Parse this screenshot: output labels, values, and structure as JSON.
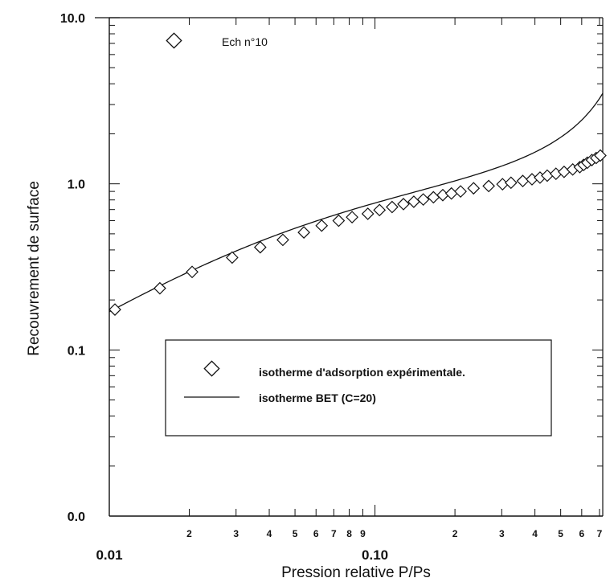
{
  "chart_data": {
    "type": "scatter",
    "xlabel": "Pression relative P/Ps",
    "ylabel": "Recouvrement de surface",
    "x_scale": "log",
    "y_scale": "log",
    "xlim": [
      0.01,
      0.72
    ],
    "ylim": [
      0.01,
      10
    ],
    "grid": false,
    "x_major_ticks": [
      {
        "value": 0.01,
        "label": "0.01"
      },
      {
        "value": 0.1,
        "label": "0.10"
      }
    ],
    "x_minor_ticks": [
      {
        "value": 0.02,
        "label": "2"
      },
      {
        "value": 0.03,
        "label": "3"
      },
      {
        "value": 0.04,
        "label": "4"
      },
      {
        "value": 0.05,
        "label": "5"
      },
      {
        "value": 0.06,
        "label": "6"
      },
      {
        "value": 0.07,
        "label": "7"
      },
      {
        "value": 0.08,
        "label": "8"
      },
      {
        "value": 0.09,
        "label": "9"
      },
      {
        "value": 0.2,
        "label": "2"
      },
      {
        "value": 0.3,
        "label": "3"
      },
      {
        "value": 0.4,
        "label": "4"
      },
      {
        "value": 0.5,
        "label": "5"
      },
      {
        "value": 0.6,
        "label": "6"
      },
      {
        "value": 0.7,
        "label": "7"
      }
    ],
    "y_ticks": [
      {
        "value": 10,
        "label": "10.0"
      },
      {
        "value": 1,
        "label": "1.0"
      },
      {
        "value": 0.1,
        "label": "0.1"
      },
      {
        "value": 0.01,
        "label": "0.0"
      }
    ],
    "annotation": "Ech n°10",
    "legend_position": "center",
    "series": [
      {
        "name": "isotherme d'adsorption expérimentale.",
        "kind": "markers",
        "marker": "diamond",
        "points": [
          [
            0.0105,
            0.175
          ],
          [
            0.0155,
            0.235
          ],
          [
            0.0205,
            0.295
          ],
          [
            0.029,
            0.36
          ],
          [
            0.037,
            0.415
          ],
          [
            0.045,
            0.46
          ],
          [
            0.054,
            0.51
          ],
          [
            0.063,
            0.56
          ],
          [
            0.073,
            0.6
          ],
          [
            0.082,
            0.63
          ],
          [
            0.094,
            0.66
          ],
          [
            0.104,
            0.695
          ],
          [
            0.116,
            0.725
          ],
          [
            0.128,
            0.755
          ],
          [
            0.14,
            0.78
          ],
          [
            0.152,
            0.805
          ],
          [
            0.166,
            0.83
          ],
          [
            0.18,
            0.855
          ],
          [
            0.194,
            0.875
          ],
          [
            0.21,
            0.9
          ],
          [
            0.235,
            0.94
          ],
          [
            0.268,
            0.97
          ],
          [
            0.302,
            0.995
          ],
          [
            0.325,
            1.015
          ],
          [
            0.36,
            1.04
          ],
          [
            0.39,
            1.065
          ],
          [
            0.418,
            1.09
          ],
          [
            0.445,
            1.12
          ],
          [
            0.48,
            1.15
          ],
          [
            0.515,
            1.18
          ],
          [
            0.555,
            1.22
          ],
          [
            0.59,
            1.26
          ],
          [
            0.61,
            1.3
          ],
          [
            0.63,
            1.34
          ],
          [
            0.655,
            1.39
          ],
          [
            0.68,
            1.43
          ],
          [
            0.705,
            1.48
          ]
        ]
      },
      {
        "name": "isotherme BET (C=20)",
        "kind": "line",
        "C": 20
      }
    ]
  }
}
